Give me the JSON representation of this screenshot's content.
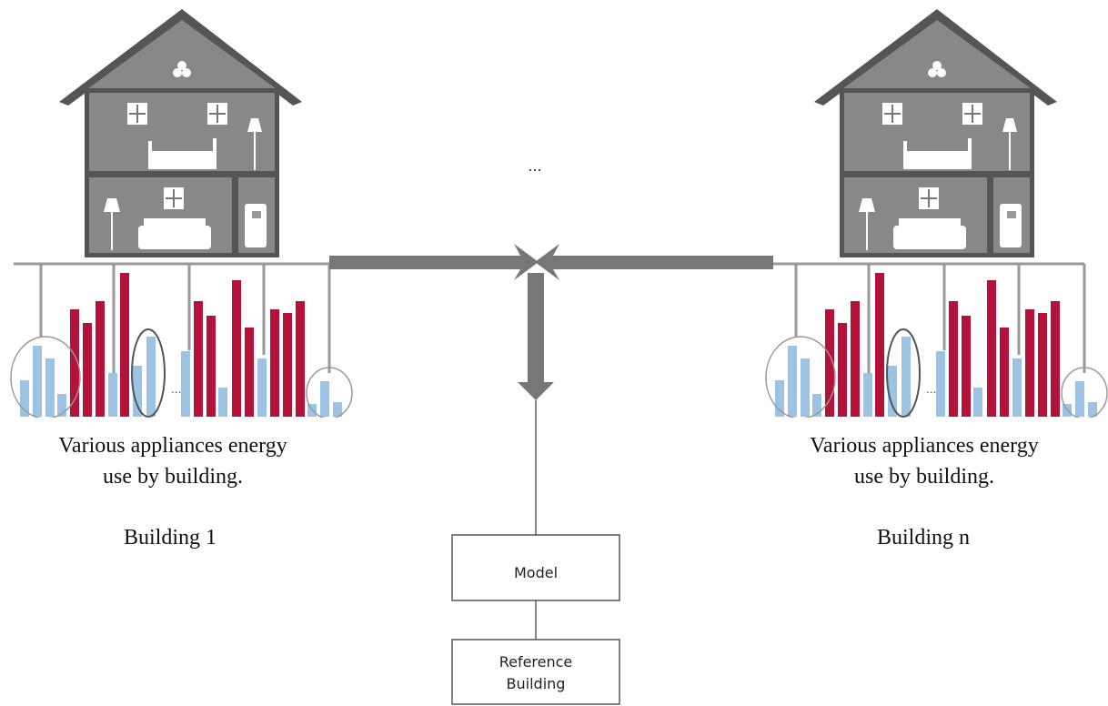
{
  "ellipsis": "...",
  "buildings": [
    {
      "caption": [
        "Various appliances energy",
        "use by building."
      ],
      "label": "Building 1"
    },
    {
      "caption": [
        "Various appliances energy",
        "use by building."
      ],
      "label": "Building n"
    }
  ],
  "model": "Model",
  "reference": [
    "Reference",
    "Building"
  ]
}
